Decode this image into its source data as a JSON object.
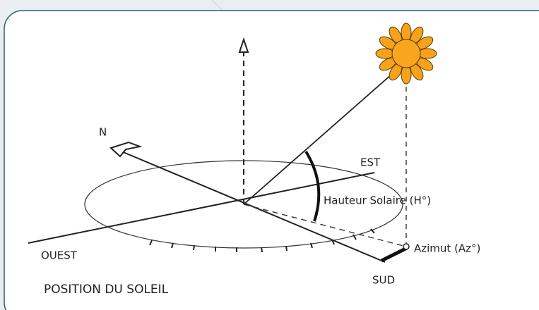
{
  "diagram": {
    "title": "POSITION DU SOLEIL",
    "labels": {
      "north": "N",
      "east": "EST",
      "west": "OUEST",
      "south": "SUD",
      "altitude": "Hauteur Solaire (H°)",
      "azimuth": "Azimut (Az°)"
    }
  }
}
